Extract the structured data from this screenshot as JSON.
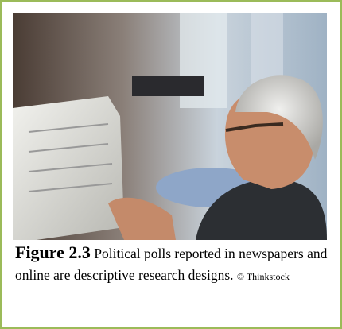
{
  "figure": {
    "label": "Figure 2.3",
    "caption": "Political polls reported in newspapers and online are descriptive research designs.",
    "credit": "© Thinkstock"
  }
}
